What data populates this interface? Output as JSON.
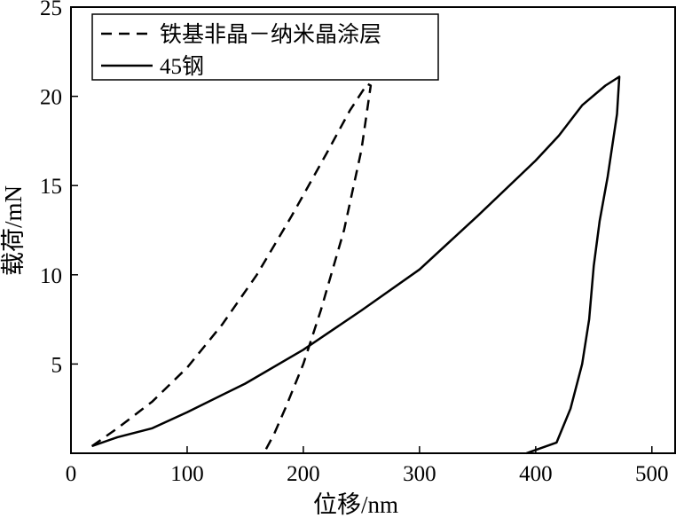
{
  "chart_data": {
    "type": "line",
    "title": "",
    "xlabel": "位移/nm",
    "ylabel": "载荷/mN",
    "xlim": [
      0,
      520
    ],
    "ylim": [
      0,
      25
    ],
    "xticks": [
      0,
      100,
      200,
      300,
      400,
      500
    ],
    "yticks": [
      5,
      10,
      15,
      20,
      25
    ],
    "xtick_labels": [
      "0",
      "100",
      "200",
      "300",
      "400",
      "500"
    ],
    "ytick_labels": [
      "5",
      "10",
      "15",
      "20",
      "25"
    ],
    "grid": false,
    "legend_position": "top-left",
    "series": [
      {
        "name": "铁基非晶－纳米晶涂层",
        "style": "dashed",
        "color": "#000000",
        "x": [
          18,
          40,
          70,
          100,
          130,
          160,
          190,
          220,
          240,
          255,
          258,
          250,
          235,
          215,
          200,
          185,
          175,
          166
        ],
        "y": [
          0.4,
          1.4,
          2.9,
          4.8,
          7.2,
          10.0,
          13.3,
          16.8,
          19.2,
          20.7,
          20.6,
          17.0,
          12.5,
          8.0,
          5.0,
          2.6,
          1.1,
          0.0
        ]
      },
      {
        "name": "45钢",
        "style": "solid",
        "color": "#000000",
        "x": [
          18,
          40,
          70,
          100,
          150,
          200,
          250,
          300,
          350,
          400,
          420,
          440,
          460,
          472,
          470,
          462,
          455,
          450,
          446,
          440,
          430,
          418,
          392
        ],
        "y": [
          0.4,
          0.9,
          1.4,
          2.3,
          3.9,
          5.8,
          8.0,
          10.3,
          13.3,
          16.4,
          17.8,
          19.5,
          20.6,
          21.1,
          19.0,
          15.5,
          13.0,
          10.5,
          7.5,
          5.0,
          2.5,
          0.6,
          0.0
        ]
      }
    ]
  }
}
